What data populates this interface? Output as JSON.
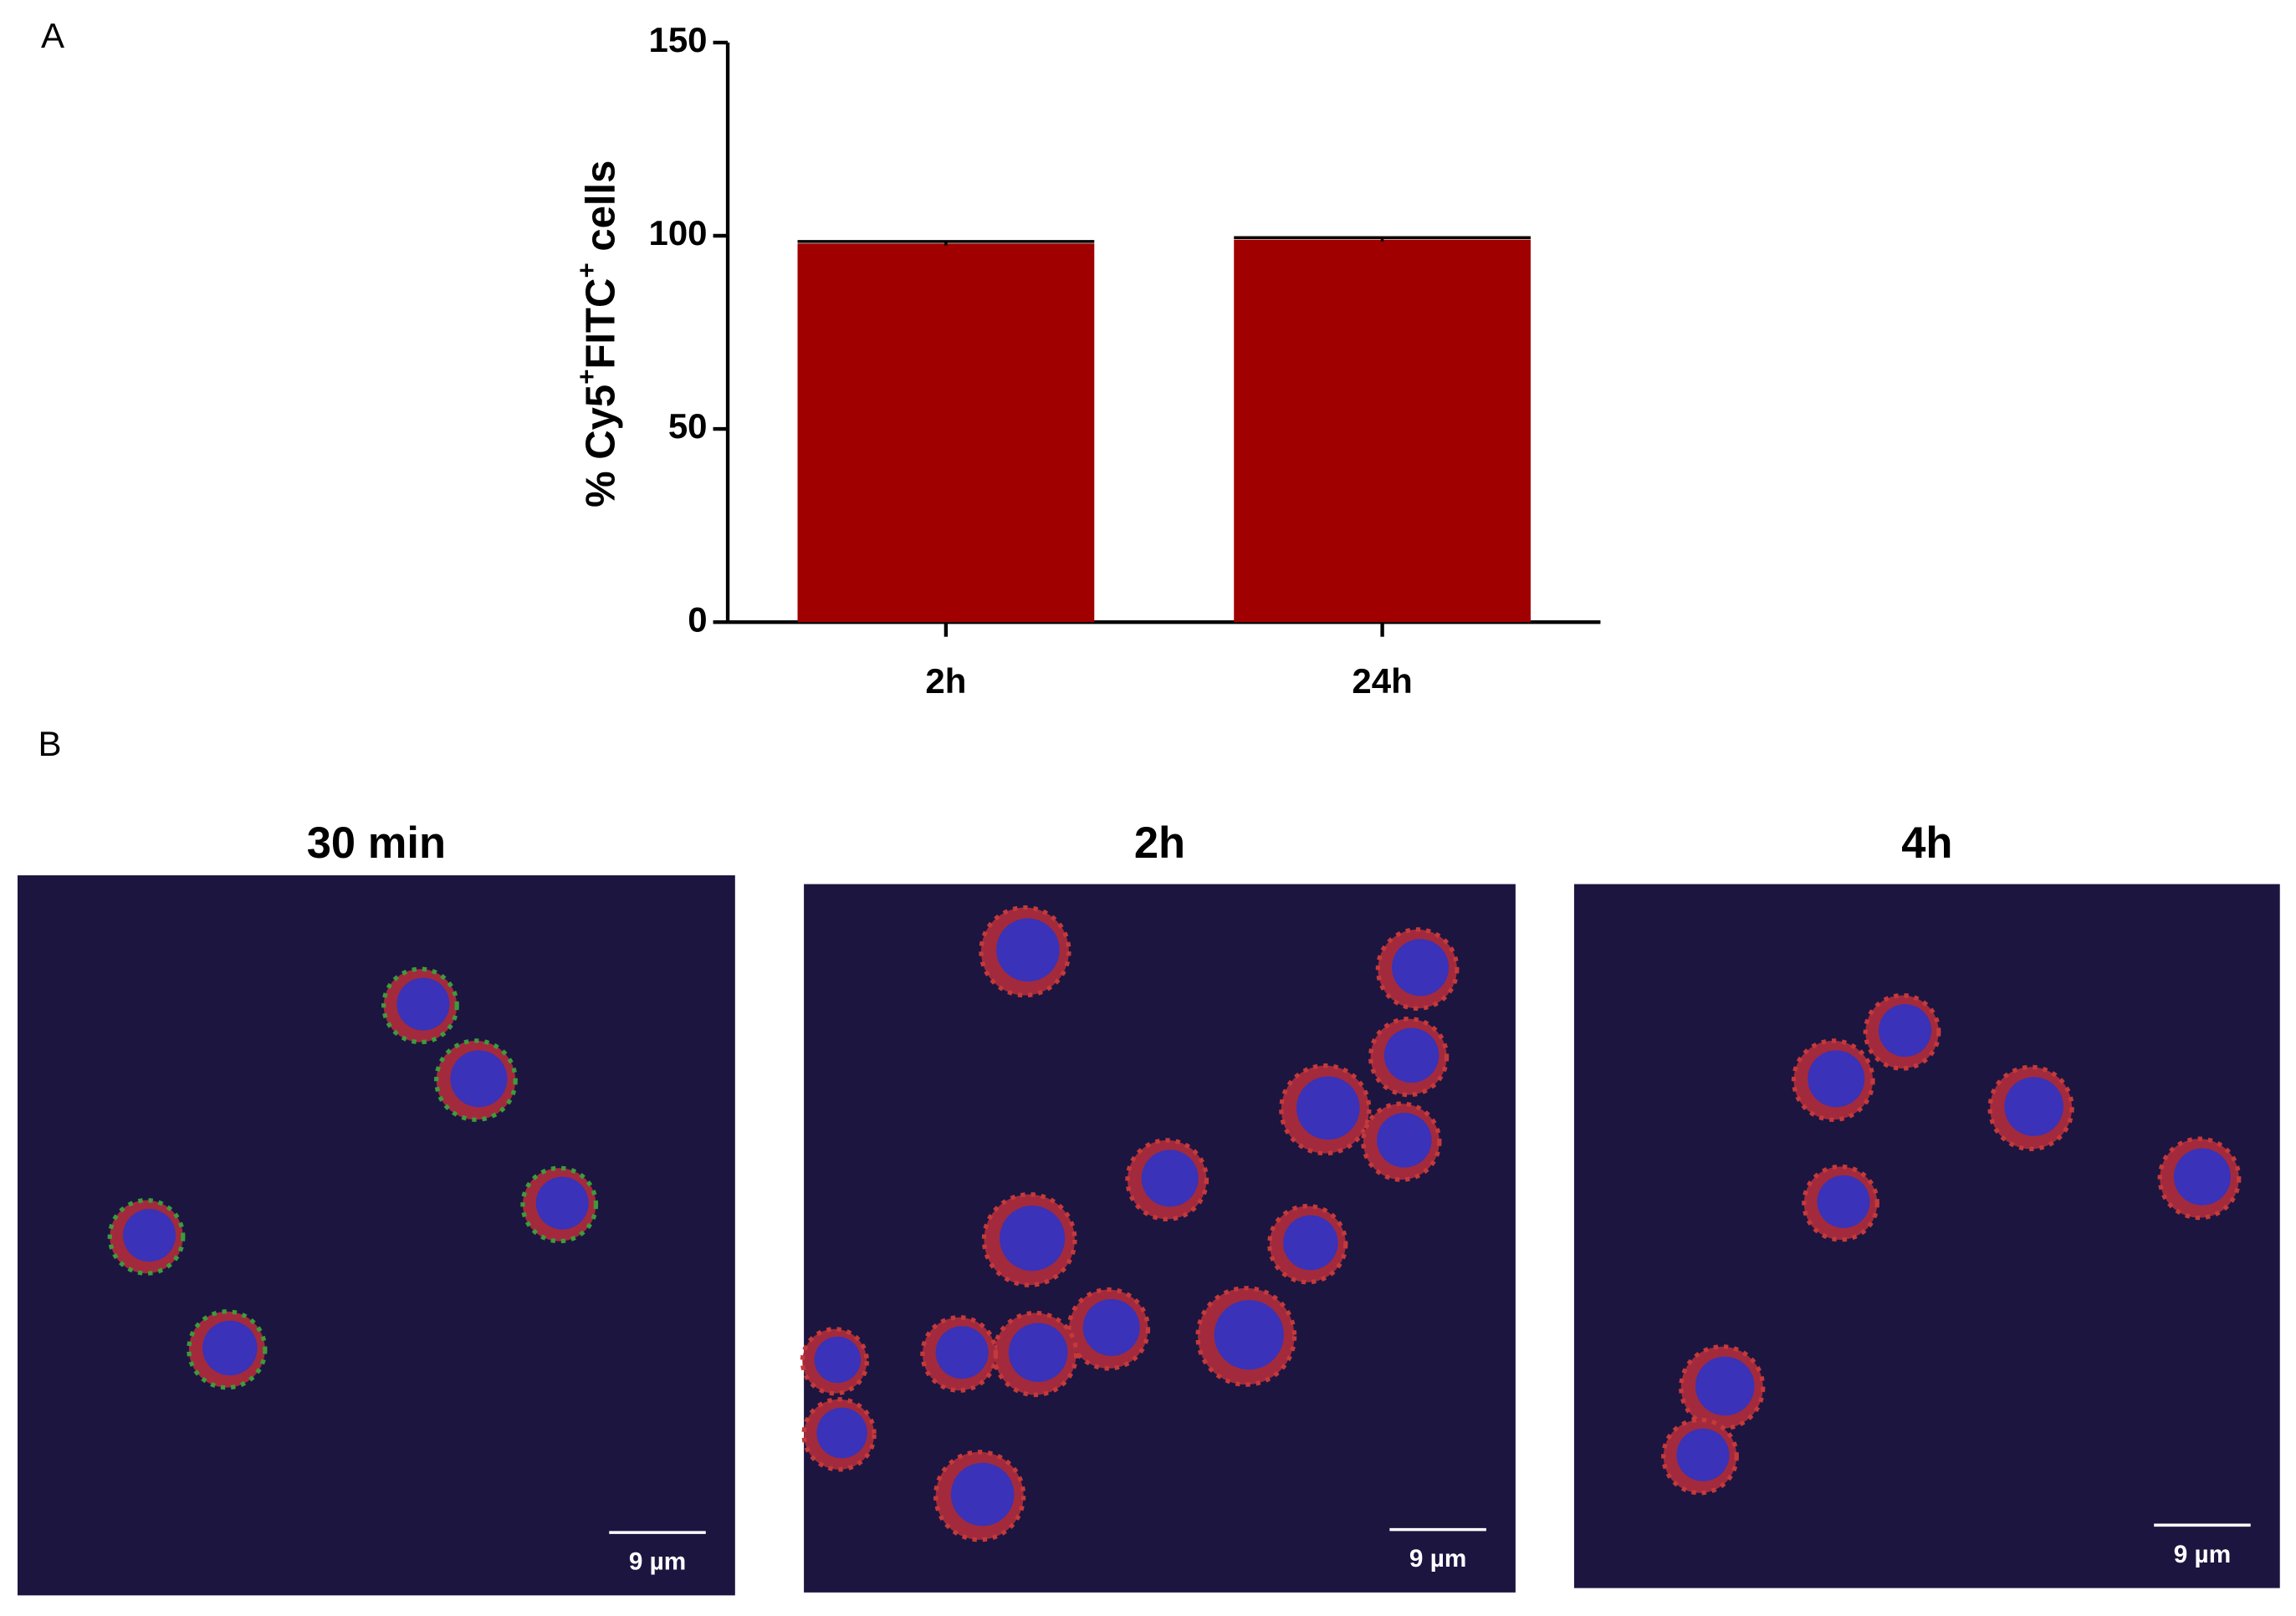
{
  "panels": {
    "a": "A",
    "b": "B"
  },
  "chart_data": {
    "type": "bar",
    "ylabel": [
      "% Cy5",
      "+",
      "FITC",
      "+",
      " cells"
    ],
    "categories": [
      "2h",
      "24h"
    ],
    "values": [
      98,
      99
    ],
    "errors": [
      0.5,
      0.5
    ],
    "color": "#a00000",
    "ylim": [
      0,
      150
    ],
    "yticks": [
      0,
      50,
      100,
      150
    ]
  },
  "images": [
    {
      "title": "30 min",
      "scale_bar": "9 µm"
    },
    {
      "title": "2h",
      "scale_bar": "9 µm"
    },
    {
      "title": "4h",
      "scale_bar": "9 µm"
    }
  ]
}
